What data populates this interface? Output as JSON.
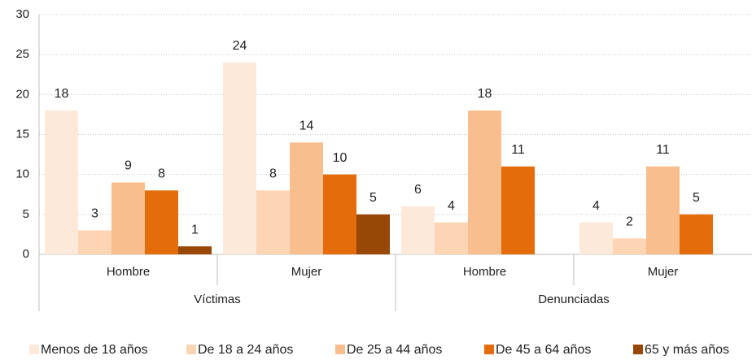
{
  "chart_data": {
    "type": "bar",
    "categories": [
      "Hombre",
      "Mujer",
      "Hombre",
      "Mujer"
    ],
    "groups": [
      "Víctimas",
      "Denunciadas"
    ],
    "series": [
      {
        "name": "Menos de 18 años",
        "color": "#fde9d9",
        "values": [
          18,
          24,
          6,
          4
        ]
      },
      {
        "name": "De 18 a 24 años",
        "color": "#fcd5b4",
        "values": [
          3,
          8,
          4,
          2
        ]
      },
      {
        "name": "De 25 a 44 años",
        "color": "#f9be8e",
        "values": [
          9,
          14,
          18,
          11
        ]
      },
      {
        "name": "De 45 a 64 años",
        "color": "#e46c0a",
        "values": [
          8,
          10,
          11,
          5
        ]
      },
      {
        "name": "65 y más años",
        "color": "#974706",
        "values": [
          1,
          5,
          null,
          null
        ]
      }
    ],
    "ylim": [
      0,
      30
    ],
    "yticks": [
      0,
      5,
      10,
      15,
      20,
      25,
      30
    ],
    "grid": true,
    "legend": "bottom"
  }
}
